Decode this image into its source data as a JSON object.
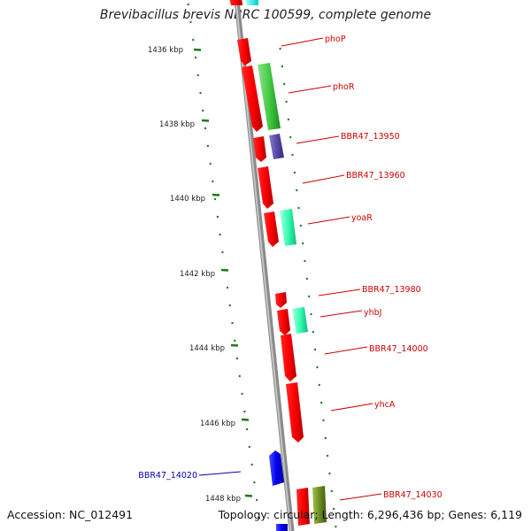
{
  "title": "Brevibacillus brevis NBRC 100599, complete genome",
  "accession_text": "Accession: NC_012491",
  "summary_text": "Topology: circular; Length: 6,296,436 bp; Genes: 6,119",
  "colors": {
    "backbone": "#8a8a8a",
    "tick": "#1a7a1a",
    "forward_gene": "#ff0000",
    "reverse_gene": "#0000ee",
    "forward_label": "#cc0000",
    "reverse_label": "#0000aa"
  },
  "position_labels": [
    {
      "text": "1436 kbp",
      "kbp": 1436
    },
    {
      "text": "1438 kbp",
      "kbp": 1438
    },
    {
      "text": "1440 kbp",
      "kbp": 1440
    },
    {
      "text": "1442 kbp",
      "kbp": 1442
    },
    {
      "text": "1444 kbp",
      "kbp": 1444
    },
    {
      "text": "1446 kbp",
      "kbp": 1446
    },
    {
      "text": "1448 kbp",
      "kbp": 1448
    }
  ],
  "gene_labels": [
    {
      "text": "phoP",
      "strand": "forward"
    },
    {
      "text": "phoR",
      "strand": "forward"
    },
    {
      "text": "BBR47_13950",
      "strand": "forward"
    },
    {
      "text": "BBR47_13960",
      "strand": "forward"
    },
    {
      "text": "yoaR",
      "strand": "forward"
    },
    {
      "text": "BBR47_13980",
      "strand": "forward"
    },
    {
      "text": "yhbJ",
      "strand": "forward"
    },
    {
      "text": "BBR47_14000",
      "strand": "forward"
    },
    {
      "text": "yhcA",
      "strand": "forward"
    },
    {
      "text": "BBR47_14020",
      "strand": "reverse"
    },
    {
      "text": "BBR47_14030",
      "strand": "forward"
    }
  ]
}
